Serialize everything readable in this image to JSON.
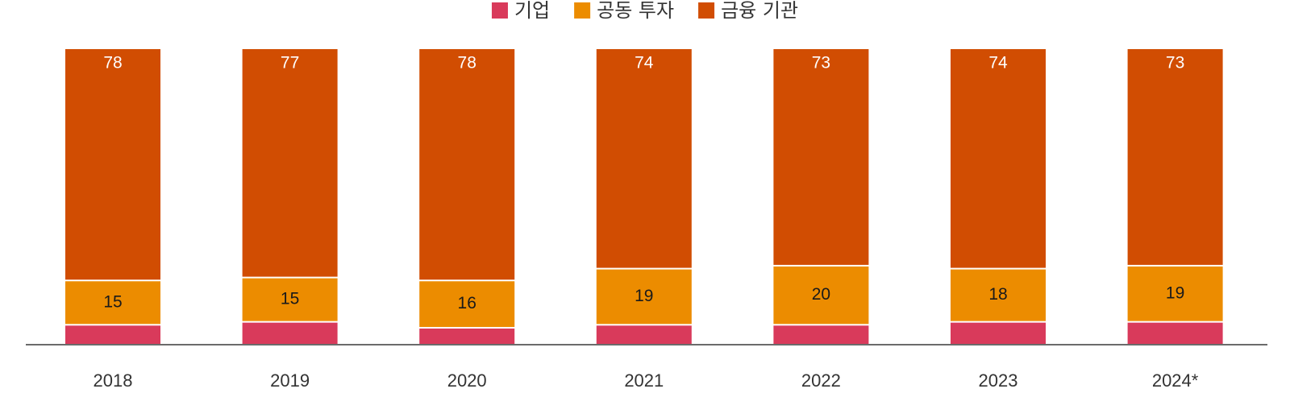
{
  "chart_data": {
    "type": "bar",
    "stacked": true,
    "normalized_percent": true,
    "categories": [
      "2018",
      "2019",
      "2020",
      "2021",
      "2022",
      "2023",
      "2024*"
    ],
    "series": [
      {
        "name": "기업",
        "color": "#d93a5b",
        "values": [
          7,
          8,
          6,
          7,
          7,
          8,
          8
        ],
        "labels_shown": false
      },
      {
        "name": "공동 투자",
        "color": "#ec8c00",
        "values": [
          15,
          15,
          16,
          19,
          20,
          18,
          19
        ],
        "labels_shown": true,
        "label_color": "#1a1a1a"
      },
      {
        "name": "금융 기관",
        "color": "#d14d02",
        "values": [
          78,
          77,
          78,
          74,
          73,
          74,
          73
        ],
        "labels_shown": true,
        "label_color": "#ffffff"
      }
    ],
    "title": "",
    "xlabel": "",
    "ylabel": "",
    "ylim": [
      0,
      100
    ],
    "grid": false,
    "legend_position": "top-center"
  }
}
